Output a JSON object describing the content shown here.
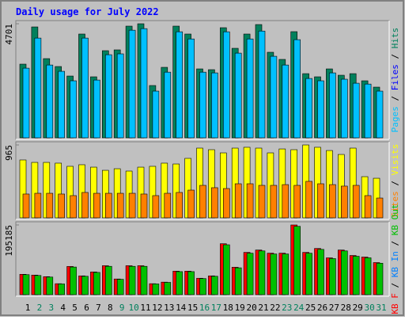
{
  "title": "Daily usage for July 2022",
  "categories": [
    "1",
    "2",
    "3",
    "4",
    "5",
    "6",
    "7",
    "8",
    "9",
    "10",
    "11",
    "12",
    "13",
    "14",
    "15",
    "16",
    "17",
    "18",
    "19",
    "20",
    "21",
    "22",
    "23",
    "24",
    "25",
    "26",
    "27",
    "28",
    "29",
    "30",
    "31"
  ],
  "category_colors": [
    "#000000",
    "#00805c",
    "#00805c",
    "#000000",
    "#000000",
    "#000000",
    "#000000",
    "#000000",
    "#00805c",
    "#00805c",
    "#000000",
    "#000000",
    "#000000",
    "#000000",
    "#000000",
    "#00805c",
    "#00805c",
    "#000000",
    "#000000",
    "#000000",
    "#000000",
    "#000000",
    "#00805c",
    "#00805c",
    "#000000",
    "#000000",
    "#000000",
    "#000000",
    "#000000",
    "#00805c",
    "#00805c"
  ],
  "legend_separator": " / ",
  "chart_data": [
    {
      "type": "bar",
      "ylim": [
        0,
        4701
      ],
      "yticks": [
        4701
      ],
      "legend": [
        {
          "label": "Pages",
          "color": "#00c0ff"
        },
        {
          "label": "Files",
          "color": "#0000ff"
        },
        {
          "label": "Hits",
          "color": "#00805c"
        }
      ],
      "series": [
        {
          "name": "Hits",
          "color": "#00805c",
          "values": [
            3036,
            4570,
            3264,
            2938,
            2546,
            4277,
            2514,
            3591,
            3624,
            4603,
            4701,
            2155,
            2905,
            4603,
            4277,
            2840,
            2808,
            4538,
            3689,
            4277,
            4668,
            3526,
            3232,
            4375,
            2644,
            2514,
            2840,
            2579,
            2644,
            2350,
            2089
          ]
        },
        {
          "name": "Pages",
          "color": "#00c0ff",
          "values": [
            2870,
            4110,
            3000,
            2740,
            2350,
            4110,
            2380,
            3425,
            3460,
            4435,
            4500,
            1925,
            2705,
            4370,
            4075,
            2705,
            2675,
            4370,
            3490,
            4075,
            4400,
            3360,
            3000,
            4045,
            2445,
            2350,
            2675,
            2415,
            2250,
            2215,
            1925
          ]
        }
      ]
    },
    {
      "type": "bar",
      "ylim": [
        0,
        965
      ],
      "yticks": [
        965
      ],
      "legend": [
        {
          "label": "Sites",
          "color": "#ff8000"
        },
        {
          "label": "Visits",
          "color": "#ffff00"
        }
      ],
      "series": [
        {
          "name": "Visits",
          "color": "#ffff00",
          "values": [
            766,
            734,
            734,
            724,
            682,
            703,
            671,
            629,
            650,
            619,
            671,
            682,
            724,
            713,
            787,
            923,
            902,
            860,
            923,
            934,
            923,
            860,
            912,
            902,
            965,
            934,
            891,
            839,
            923,
            545,
            524
          ]
        },
        {
          "name": "Sites",
          "color": "#ff8000",
          "values": [
            315,
            325,
            325,
            315,
            294,
            336,
            325,
            325,
            325,
            325,
            315,
            294,
            325,
            336,
            367,
            430,
            399,
            388,
            451,
            451,
            430,
            430,
            440,
            430,
            483,
            451,
            440,
            420,
            430,
            294,
            262
          ]
        }
      ]
    },
    {
      "type": "bar",
      "ylim": [
        0,
        195185
      ],
      "yticks": [
        195185
      ],
      "legend": [
        {
          "label": "KB F",
          "color": "#ff0000"
        },
        {
          "label": "KB In",
          "color": "#0080ff"
        },
        {
          "label": "KB Out",
          "color": "#00c000"
        }
      ],
      "series": [
        {
          "name": "KB F",
          "color": "#ff0000",
          "values": [
            57000,
            54800,
            50400,
            30700,
            79000,
            52600,
            63600,
            81100,
            43900,
            81100,
            81100,
            30700,
            35100,
            65800,
            65800,
            46000,
            52600,
            142600,
            76800,
            118400,
            125000,
            116200,
            116200,
            195185,
            118400,
            129400,
            103100,
            125000,
            109700,
            105300,
            89900
          ]
        },
        {
          "name": "KB Out",
          "color": "#00c000",
          "values": [
            56000,
            53700,
            49300,
            30000,
            77400,
            51500,
            62300,
            79400,
            43000,
            79400,
            79400,
            30000,
            34400,
            64500,
            64500,
            45000,
            51500,
            139700,
            75200,
            116000,
            122500,
            113900,
            113900,
            191300,
            116000,
            126800,
            101000,
            122500,
            107500,
            103200,
            88100
          ]
        }
      ]
    }
  ]
}
